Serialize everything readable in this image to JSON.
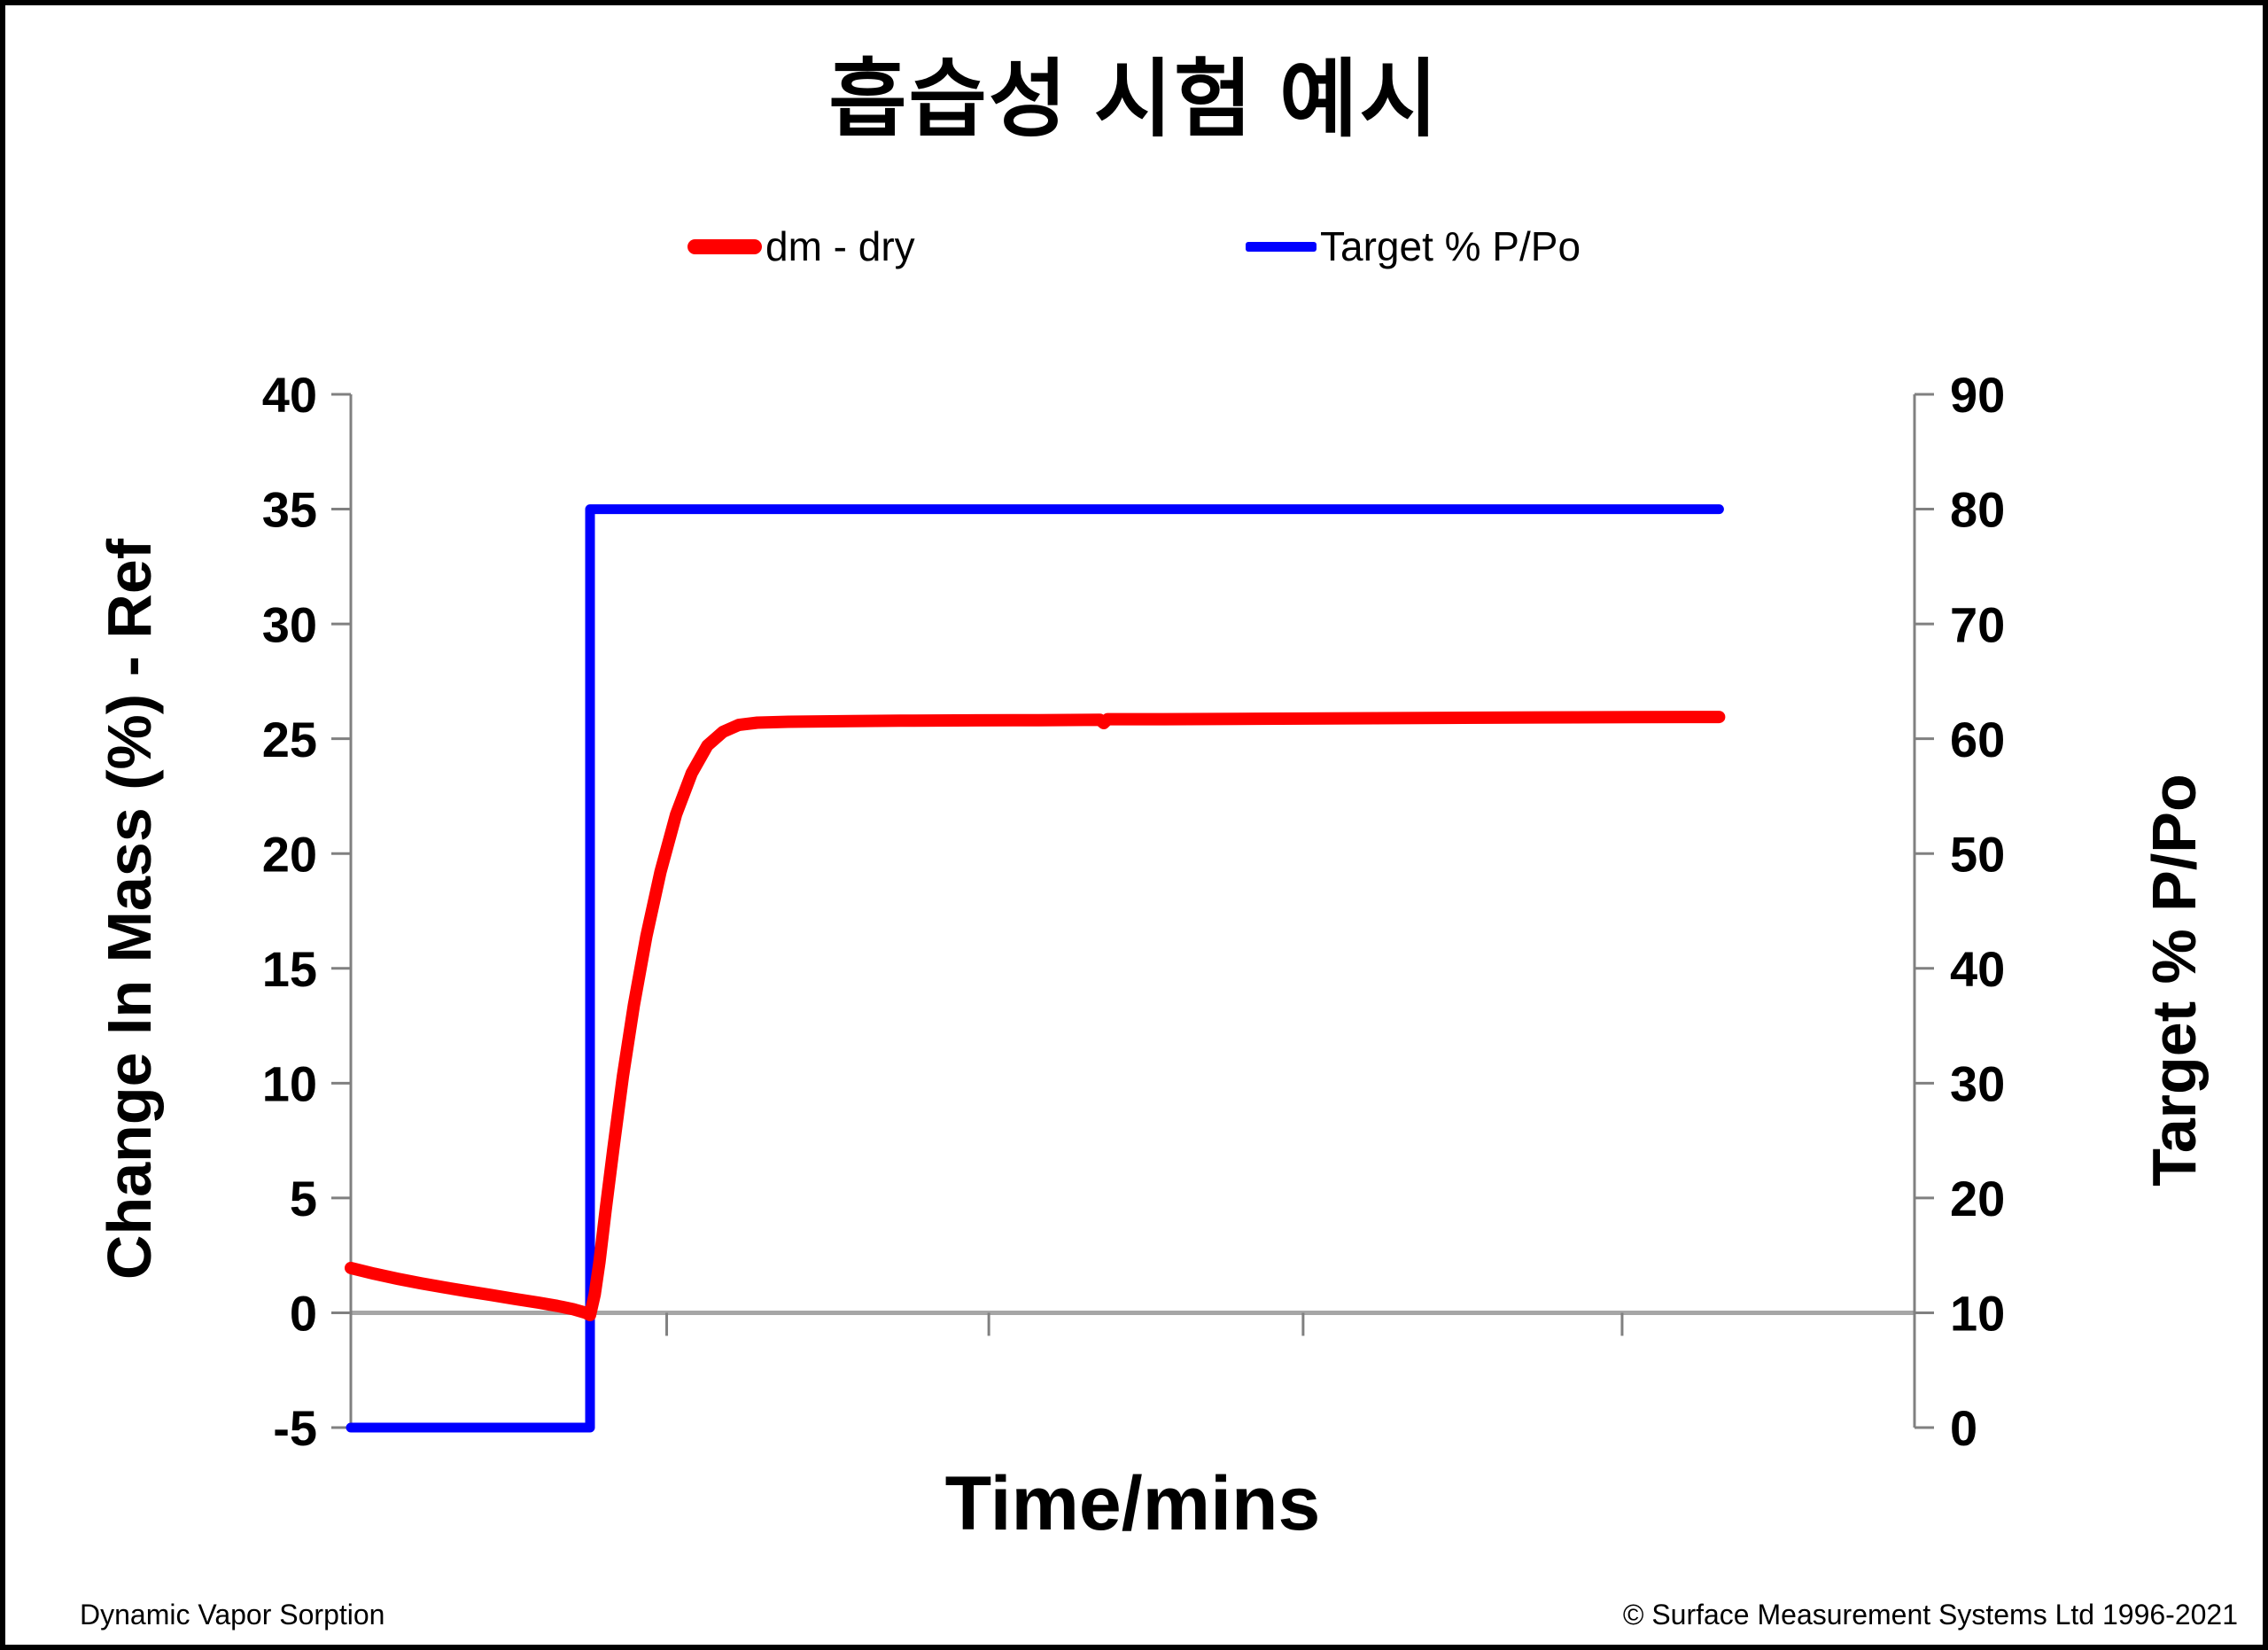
{
  "frame": {
    "background": "#ffffff",
    "border_color": "#000000"
  },
  "chart_data": {
    "type": "line",
    "title": "흡습성 시험 예시",
    "xlabel": "Time/mins",
    "x_axis": {
      "min": 0,
      "max": 100,
      "unit": "percent-of-axis (no tick labels shown)",
      "tick_positions": [
        20.2,
        40.8,
        60.9,
        81.3
      ],
      "tick_labels_shown": false
    },
    "y_left": {
      "title": "Change In Mass (%) - Ref",
      "min": -5,
      "max": 40,
      "ticks": [
        40,
        35,
        30,
        25,
        20,
        15,
        10,
        5,
        0,
        -5
      ]
    },
    "y_right": {
      "title": "Target % P/Po",
      "min": 0,
      "max": 90,
      "ticks": [
        90,
        80,
        70,
        60,
        50,
        40,
        30,
        20,
        10,
        0
      ]
    },
    "grid": "only zero line on left axis",
    "zero_line_color": "#a6a6a6",
    "axis_color": "#808080",
    "legend_position": "top-center, horizontal",
    "legend": [
      {
        "label": "dm - dry",
        "color": "#ff0000"
      },
      {
        "label": "Target % P/Po",
        "color": "#0000ff"
      }
    ],
    "series": [
      {
        "name": "Target % P/Po",
        "axis": "right",
        "color": "#0000ff",
        "stroke_width": 11,
        "points": [
          [
            0,
            0
          ],
          [
            15.3,
            0
          ],
          [
            15.3,
            80
          ],
          [
            87.5,
            80
          ]
        ]
      },
      {
        "name": "dm - dry",
        "axis": "left",
        "color": "#ff0000",
        "stroke_width": 14,
        "points": [
          [
            0,
            1.95
          ],
          [
            1.5,
            1.7
          ],
          [
            3,
            1.48
          ],
          [
            4.5,
            1.28
          ],
          [
            6,
            1.1
          ],
          [
            7.5,
            0.93
          ],
          [
            9,
            0.77
          ],
          [
            10.5,
            0.6
          ],
          [
            12,
            0.44
          ],
          [
            13.2,
            0.3
          ],
          [
            14.2,
            0.16
          ],
          [
            15.0,
            0.0
          ],
          [
            15.3,
            -0.1
          ],
          [
            15.6,
            0.8
          ],
          [
            15.9,
            2.2
          ],
          [
            16.3,
            4.5
          ],
          [
            16.8,
            7.2
          ],
          [
            17.4,
            10.3
          ],
          [
            18.1,
            13.4
          ],
          [
            18.9,
            16.4
          ],
          [
            19.8,
            19.2
          ],
          [
            20.8,
            21.7
          ],
          [
            21.8,
            23.5
          ],
          [
            22.8,
            24.7
          ],
          [
            23.8,
            25.3
          ],
          [
            24.8,
            25.6
          ],
          [
            26,
            25.7
          ],
          [
            28,
            25.74
          ],
          [
            32,
            25.77
          ],
          [
            36,
            25.79
          ],
          [
            40,
            25.8
          ],
          [
            44,
            25.81
          ],
          [
            47.9,
            25.83
          ],
          [
            48.15,
            25.68
          ],
          [
            48.4,
            25.85
          ],
          [
            52,
            25.85
          ],
          [
            58,
            25.87
          ],
          [
            64,
            25.89
          ],
          [
            70,
            25.91
          ],
          [
            76,
            25.93
          ],
          [
            82,
            25.94
          ],
          [
            87.5,
            25.95
          ]
        ]
      }
    ]
  },
  "footer": {
    "left": "Dynamic Vapor Sorption",
    "right": "© Surface Measurement Systems Ltd 1996-2021"
  }
}
